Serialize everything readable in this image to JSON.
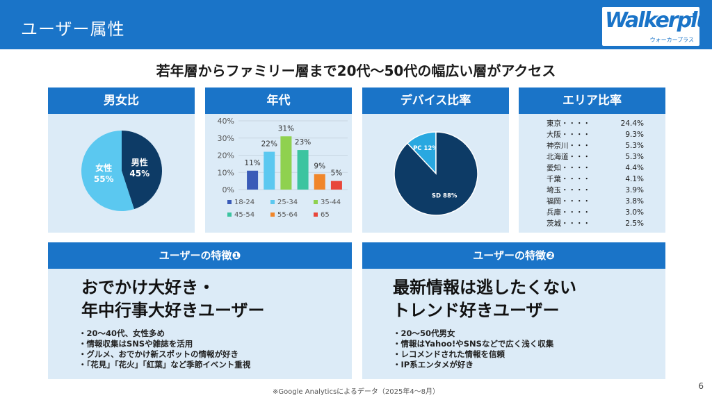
{
  "header": {
    "title": "ユーザー属性",
    "logo": "Walkerplus",
    "logo_sub": "ウォーカープラス"
  },
  "headline": "若年層からファミリー層まで20代～50代の幅広い層がアクセス",
  "panels": {
    "gender": "男女比",
    "age": "年代",
    "device": "デバイス比率",
    "area": "エリア比率",
    "feature1": "ユーザーの特徴❶",
    "feature2": "ユーザーの特徴❷"
  },
  "chart_data": [
    {
      "type": "pie",
      "title": "男女比",
      "labels": [
        "男性",
        "女性"
      ],
      "values": [
        45,
        55
      ],
      "display": [
        "男性\n45%",
        "女性\n55%"
      ],
      "colors": [
        "#0d3b66",
        "#5bc8f0"
      ]
    },
    {
      "type": "bar",
      "title": "年代",
      "categories": [
        "18-24",
        "25-34",
        "35-44",
        "45-54",
        "55-64",
        "65"
      ],
      "values": [
        11,
        22,
        31,
        23,
        9,
        5
      ],
      "value_labels": [
        "11%",
        "22%",
        "31%",
        "23%",
        "9%",
        "5%"
      ],
      "colors": [
        "#3a5bb8",
        "#5bc8f0",
        "#8fd14f",
        "#3cc4a0",
        "#f0862a",
        "#e8463a"
      ],
      "ylim": [
        0,
        40
      ],
      "yticks": [
        "0%",
        "10%",
        "20%",
        "30%",
        "40%"
      ],
      "legend": "bottom"
    },
    {
      "type": "pie",
      "title": "デバイス比率",
      "labels": [
        "SD",
        "PC"
      ],
      "values": [
        88,
        12
      ],
      "display": [
        "SD 88%",
        "PC 12%"
      ],
      "colors": [
        "#0d3b66",
        "#29a8e0"
      ]
    },
    {
      "type": "table",
      "title": "エリア比率",
      "rows": [
        {
          "name": "東京・・・・",
          "value": "24.4%"
        },
        {
          "name": "大阪・・・・",
          "value": "9.3%"
        },
        {
          "name": "神奈川・・・",
          "value": "5.3%"
        },
        {
          "name": "北海道・・・",
          "value": "5.3%"
        },
        {
          "name": "愛知・・・・",
          "value": "4.4%"
        },
        {
          "name": "千葉・・・・",
          "value": "4.1%"
        },
        {
          "name": "埼玉・・・・",
          "value": "3.9%"
        },
        {
          "name": "福岡・・・・",
          "value": "3.8%"
        },
        {
          "name": "兵庫・・・・",
          "value": "3.0%"
        },
        {
          "name": "茨城・・・・",
          "value": "2.5%"
        }
      ]
    }
  ],
  "feature1": {
    "title_line1": "おでかけ大好き・",
    "title_line2": "年中行事大好きユーザー",
    "bullets": [
      "・20～40代、女性多め",
      "・情報収集はSNSや雑誌を活用",
      "・グルメ、おでかけ新スポットの情報が好き",
      "・「花見」「花火」「紅葉」など季節イベント重視"
    ]
  },
  "feature2": {
    "title_line1": "最新情報は逃したくない",
    "title_line2": "トレンド好きユーザー",
    "bullets": [
      "・20～50代男女",
      "・情報はYahoo!やSNSなどで広く浅く収集",
      "・レコメンドされた情報を信頼",
      "・IP系エンタメが好き"
    ]
  },
  "footnote": "※Google Analyticsによるデータ（2025年4～8月）",
  "page_number": "6"
}
